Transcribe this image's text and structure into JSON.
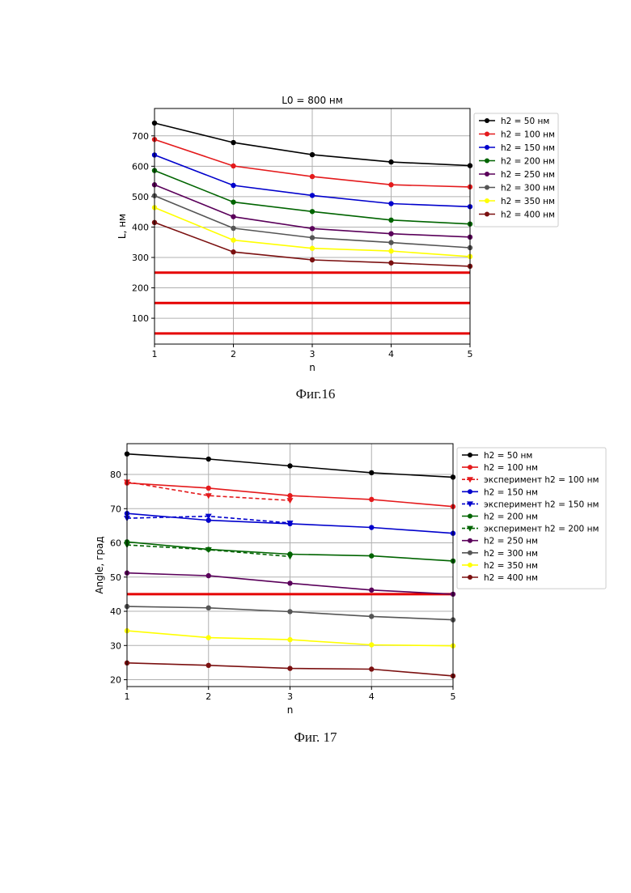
{
  "figures": [
    {
      "caption": "Фиг.16"
    },
    {
      "caption": "Фиг. 17"
    }
  ],
  "chart_data": [
    {
      "type": "line",
      "title": "L0 = 800 нм",
      "xlabel": "n",
      "ylabel": "L, нм",
      "xlim": [
        1,
        5
      ],
      "ylim": [
        15,
        790
      ],
      "x_ticks": [
        1,
        2,
        3,
        4,
        5
      ],
      "y_ticks": [
        100,
        200,
        300,
        400,
        500,
        600,
        700
      ],
      "grid": true,
      "legend_position": "top-right",
      "x": [
        1,
        2,
        3,
        4,
        5
      ],
      "series": [
        {
          "name": "h2 = 50 нм",
          "color": "#000000",
          "style": "solid",
          "marker": "circle",
          "values": [
            742,
            678,
            638,
            614,
            602
          ]
        },
        {
          "name": "h2 = 100 нм",
          "color": "#e41a1c",
          "style": "solid",
          "marker": "circle",
          "values": [
            688,
            601,
            566,
            539,
            532
          ]
        },
        {
          "name": "h2 = 150 нм",
          "color": "#0000cc",
          "style": "solid",
          "marker": "circle",
          "values": [
            637,
            537,
            504,
            477,
            467
          ]
        },
        {
          "name": "h2 = 200 нм",
          "color": "#006400",
          "style": "solid",
          "marker": "circle",
          "values": [
            586,
            482,
            451,
            423,
            410
          ]
        },
        {
          "name": "h2 = 250 нм",
          "color": "#5a005a",
          "style": "solid",
          "marker": "circle",
          "values": [
            539,
            434,
            395,
            378,
            367
          ]
        },
        {
          "name": "h2 = 300 нм",
          "color": "#555555",
          "style": "solid",
          "marker": "circle",
          "values": [
            503,
            396,
            365,
            349,
            332
          ]
        },
        {
          "name": "h2 = 350 нм",
          "color": "#ffff00",
          "style": "solid",
          "marker": "circle",
          "values": [
            464,
            357,
            330,
            321,
            303
          ]
        },
        {
          "name": "h2 = 400 нм",
          "color": "#7b1010",
          "style": "solid",
          "marker": "circle",
          "values": [
            415,
            318,
            292,
            282,
            271
          ]
        }
      ],
      "reference_lines": [
        {
          "y": 250,
          "color": "#e50000"
        },
        {
          "y": 150,
          "color": "#e50000"
        },
        {
          "y": 50,
          "color": "#e50000"
        }
      ]
    },
    {
      "type": "line",
      "title": "",
      "xlabel": "n",
      "ylabel": "Angle, град",
      "xlim": [
        1,
        5
      ],
      "ylim": [
        18,
        89
      ],
      "x_ticks": [
        1,
        2,
        3,
        4,
        5
      ],
      "y_ticks": [
        20,
        30,
        40,
        50,
        60,
        70,
        80
      ],
      "grid": true,
      "legend_position": "right",
      "x": [
        1,
        2,
        3,
        4,
        5
      ],
      "series": [
        {
          "name": "h2 = 50 нм",
          "color": "#000000",
          "style": "solid",
          "marker": "circle",
          "x": [
            1,
            2,
            3,
            4,
            5
          ],
          "values": [
            86.0,
            84.5,
            82.5,
            80.5,
            79.2
          ]
        },
        {
          "name": "h2 = 100 нм",
          "color": "#e41a1c",
          "style": "solid",
          "marker": "circle",
          "x": [
            1,
            2,
            3,
            4,
            5
          ],
          "values": [
            77.5,
            76.0,
            73.8,
            72.7,
            70.6
          ]
        },
        {
          "name": "эксперимент h2 = 100 нм",
          "color": "#e41a1c",
          "style": "dashed",
          "marker": "triangle-down",
          "x": [
            1,
            2,
            3
          ],
          "values": [
            77.8,
            73.8,
            72.4
          ]
        },
        {
          "name": "h2 = 150 нм",
          "color": "#0000cc",
          "style": "solid",
          "marker": "circle",
          "x": [
            1,
            2,
            3,
            4,
            5
          ],
          "values": [
            68.6,
            66.6,
            65.6,
            64.5,
            62.8
          ]
        },
        {
          "name": "эксперимент h2 = 150 нм",
          "color": "#0000cc",
          "style": "dashed",
          "marker": "triangle-down",
          "x": [
            1,
            2,
            3
          ],
          "values": [
            67.2,
            67.8,
            65.8
          ]
        },
        {
          "name": "h2 = 200 нм",
          "color": "#006400",
          "style": "solid",
          "marker": "circle",
          "x": [
            1,
            2,
            3,
            4,
            5
          ],
          "values": [
            60.3,
            58.1,
            56.7,
            56.2,
            54.7
          ]
        },
        {
          "name": "эксперимент h2 = 200 нм",
          "color": "#006400",
          "style": "dashed",
          "marker": "triangle-down",
          "x": [
            1,
            2,
            3
          ],
          "values": [
            59.4,
            58.0,
            56.0
          ]
        },
        {
          "name": "h2 = 250 нм",
          "color": "#5a005a",
          "style": "solid",
          "marker": "circle",
          "x": [
            1,
            2,
            3,
            4,
            5
          ],
          "values": [
            51.2,
            50.4,
            48.2,
            46.2,
            45.0
          ]
        },
        {
          "name": "h2 = 300 нм",
          "color": "#555555",
          "style": "solid",
          "marker": "circle",
          "x": [
            1,
            2,
            3,
            4,
            5
          ],
          "values": [
            41.4,
            41.0,
            39.9,
            38.5,
            37.5
          ]
        },
        {
          "name": "h2 = 350 нм",
          "color": "#ffff00",
          "style": "solid",
          "marker": "circle",
          "x": [
            1,
            2,
            3,
            4,
            5
          ],
          "values": [
            34.3,
            32.3,
            31.7,
            30.2,
            29.9
          ]
        },
        {
          "name": "h2 = 400 нм",
          "color": "#7b1010",
          "style": "solid",
          "marker": "circle",
          "x": [
            1,
            2,
            3,
            4,
            5
          ],
          "values": [
            24.9,
            24.2,
            23.3,
            23.1,
            21.1
          ]
        }
      ],
      "reference_lines": [
        {
          "y": 45,
          "color": "#e50000"
        }
      ]
    }
  ]
}
